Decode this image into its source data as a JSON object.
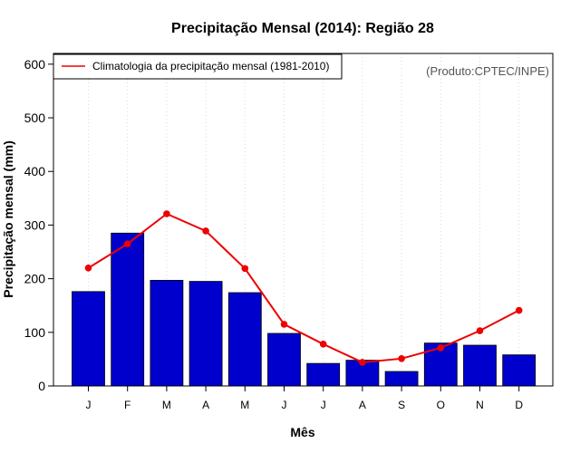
{
  "chart_data": {
    "type": "bar",
    "title": "Precipitação Mensal (2014): Região 28",
    "xlabel": "Mês",
    "ylabel": "Precipitação mensal (mm)",
    "source_note": "(Produto:CPTEC/INPE)",
    "categories": [
      "J",
      "F",
      "M",
      "A",
      "M",
      "J",
      "J",
      "A",
      "S",
      "O",
      "N",
      "D"
    ],
    "ylim": [
      0,
      620
    ],
    "yticks": [
      0,
      100,
      200,
      300,
      400,
      500,
      600
    ],
    "grid": "vertical dotted",
    "legend_position": "top-left",
    "series": [
      {
        "name": "Precipitação mensal (2014)",
        "kind": "bar",
        "color": "#0000CD",
        "values": [
          176,
          285,
          197,
          195,
          174,
          98,
          42,
          48,
          27,
          80,
          76,
          58
        ]
      },
      {
        "name": "Climatologia da precipitação mensal (1981-2010)",
        "kind": "line",
        "color": "#EE0000",
        "values": [
          220,
          265,
          321,
          289,
          219,
          115,
          78,
          44,
          51,
          71,
          103,
          141
        ]
      }
    ]
  }
}
